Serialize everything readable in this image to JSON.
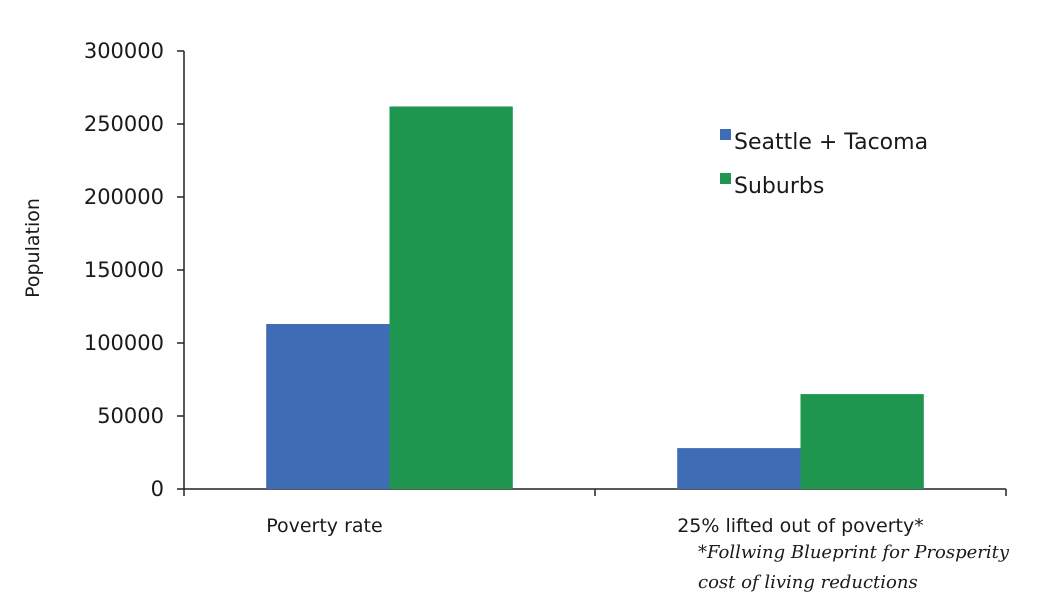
{
  "chart_data": {
    "type": "bar",
    "categories": [
      "Poverty rate",
      "25% lifted out of poverty*"
    ],
    "series": [
      {
        "name": "Seattle + Tacoma",
        "color": "#3e6db5",
        "values": [
          113000,
          28000
        ]
      },
      {
        "name": "Suburbs",
        "color": "#1e9650",
        "values": [
          262000,
          65000
        ]
      }
    ],
    "ylabel": "Population",
    "xlabel": "",
    "ylim": [
      0,
      300000
    ],
    "yticks": [
      0,
      50000,
      100000,
      150000,
      200000,
      250000,
      300000
    ],
    "grid": false,
    "legend_position": "top-right",
    "footnote_lines": [
      "*Follwing Blueprint for Prosperity",
      "cost of living reductions"
    ]
  }
}
